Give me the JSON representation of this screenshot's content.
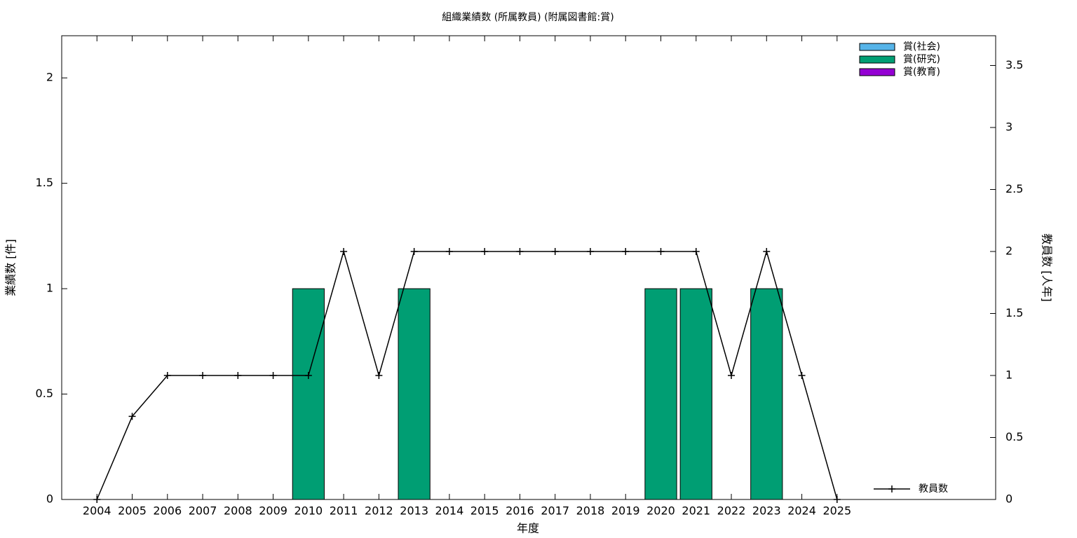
{
  "chart_data": {
    "type": "bar",
    "title": "組織業績数 (所属教員) (附属図書館:賞)",
    "x_label": "年度",
    "y_label": "業績数 [件]",
    "y2_label": "教員数 [人年]",
    "x": [
      2004,
      2005,
      2006,
      2007,
      2008,
      2009,
      2010,
      2011,
      2012,
      2013,
      2014,
      2015,
      2016,
      2017,
      2018,
      2019,
      2020,
      2021,
      2022,
      2023,
      2024,
      2025
    ],
    "xlim": [
      2003,
      2029.5
    ],
    "xticks": [
      2004,
      2005,
      2006,
      2007,
      2008,
      2009,
      2010,
      2011,
      2012,
      2013,
      2014,
      2015,
      2016,
      2017,
      2018,
      2019,
      2020,
      2021,
      2022,
      2023,
      2024,
      2025
    ],
    "ylim": [
      0,
      2.2
    ],
    "yticks": [
      0,
      0.5,
      1,
      1.5,
      2
    ],
    "y2lim": [
      0,
      3.74
    ],
    "y2ticks": [
      0,
      0.5,
      1,
      1.5,
      2,
      2.5,
      3,
      3.5
    ],
    "stacked": true,
    "grid": false,
    "series": [
      {
        "name": "賞(社会)",
        "type": "bar",
        "color": "#56b4e9",
        "values": [
          0,
          0,
          0,
          0,
          0,
          0,
          0,
          0,
          0,
          0,
          0,
          0,
          0,
          0,
          0,
          0,
          0,
          0,
          0,
          0,
          0,
          0
        ]
      },
      {
        "name": "賞(研究)",
        "type": "bar",
        "color": "#009e73",
        "values": [
          0,
          0,
          0,
          0,
          0,
          0,
          1,
          0,
          0,
          1,
          0,
          0,
          0,
          0,
          0,
          0,
          1,
          1,
          0,
          1,
          0,
          0
        ]
      },
      {
        "name": "賞(教育)",
        "type": "bar",
        "color": "#9400d3",
        "values": [
          0,
          0,
          0,
          0,
          0,
          0,
          0,
          0,
          0,
          0,
          0,
          0,
          0,
          0,
          0,
          0,
          0,
          0,
          0,
          0,
          0,
          0
        ]
      },
      {
        "name": "教員数",
        "type": "line",
        "axis": "y2",
        "color": "#000000",
        "values": [
          0,
          0.67,
          1,
          1,
          1,
          1,
          1,
          2,
          1,
          2,
          2,
          2,
          2,
          2,
          2,
          2,
          2,
          2,
          1,
          2,
          1,
          0
        ]
      }
    ]
  }
}
